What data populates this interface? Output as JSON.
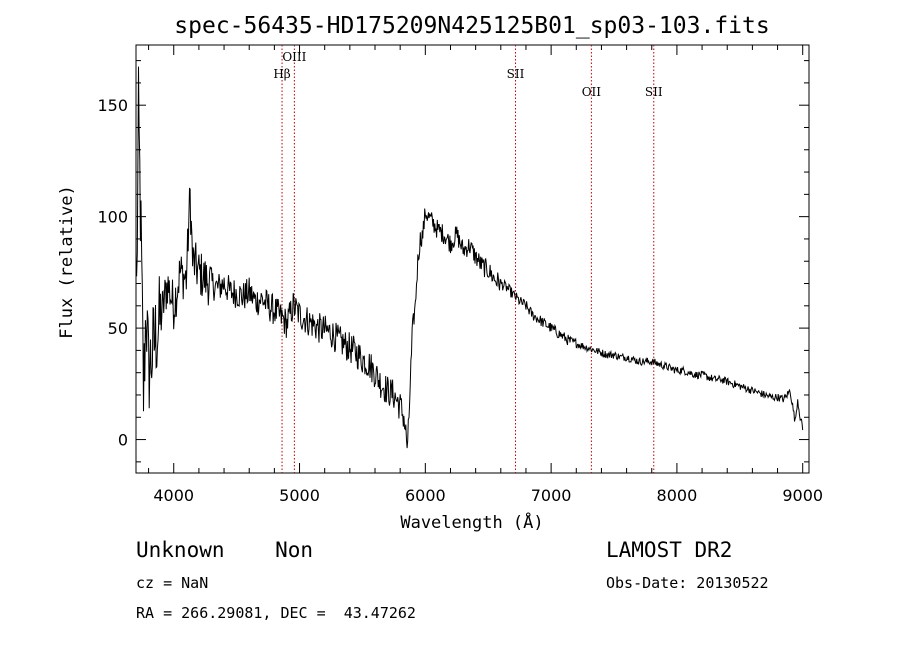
{
  "chart_data": {
    "type": "line",
    "title": "spec-56435-HD175209N425125B01_sp03-103.fits",
    "xlabel": "Wavelength (Å)",
    "ylabel": "Flux (relative)",
    "xlim": [
      3700,
      9050
    ],
    "ylim": [
      -15,
      177
    ],
    "x_ticks": [
      4000,
      5000,
      6000,
      7000,
      8000,
      9000
    ],
    "y_ticks": [
      0,
      50,
      100,
      150
    ],
    "grid": false,
    "series": [
      {
        "x": [
          3700,
          3720,
          3740,
          3760,
          3780,
          3800,
          3850,
          3900,
          3950,
          4000,
          4050,
          4100,
          4130,
          4150,
          4200,
          4250,
          4300,
          4350,
          4400,
          4450,
          4500,
          4550,
          4600,
          4650,
          4700,
          4750,
          4800,
          4850,
          4900,
          4950,
          5000,
          5050,
          5100,
          5150,
          5200,
          5250,
          5300,
          5350,
          5400,
          5450,
          5500,
          5550,
          5600,
          5650,
          5700,
          5750,
          5800,
          5830,
          5860,
          5880,
          5900,
          5920,
          5940,
          5960,
          5980,
          6000,
          6050,
          6100,
          6150,
          6200,
          6250,
          6300,
          6350,
          6400,
          6450,
          6500,
          6550,
          6600,
          6650,
          6700,
          6750,
          6800,
          6850,
          6900,
          6950,
          7000,
          7050,
          7100,
          7150,
          7200,
          7250,
          7300,
          7350,
          7400,
          7450,
          7500,
          7550,
          7600,
          7650,
          7700,
          7750,
          7800,
          7850,
          7900,
          7950,
          8000,
          8050,
          8100,
          8150,
          8200,
          8250,
          8300,
          8350,
          8400,
          8450,
          8500,
          8550,
          8600,
          8650,
          8700,
          8750,
          8800,
          8850,
          8900,
          8920,
          8940,
          8960,
          8980,
          9000
        ],
        "y": [
          40,
          145,
          90,
          20,
          60,
          30,
          45,
          55,
          70,
          60,
          75,
          72,
          110,
          80,
          75,
          72,
          70,
          68,
          70,
          66,
          66,
          64,
          66,
          62,
          63,
          60,
          58,
          55,
          52,
          60,
          56,
          54,
          52,
          50,
          49,
          48,
          45,
          43,
          41,
          39,
          36,
          34,
          30,
          25,
          22,
          20,
          15,
          10,
          -5,
          25,
          50,
          60,
          80,
          90,
          92,
          102,
          98,
          94,
          92,
          88,
          92,
          85,
          87,
          82,
          78,
          76,
          72,
          70,
          68,
          65,
          62,
          60,
          56,
          54,
          52,
          50,
          48,
          46,
          44,
          43,
          42,
          41,
          40,
          39,
          38,
          38,
          37,
          37,
          36,
          35,
          35,
          35,
          34,
          33,
          32,
          31,
          31,
          30,
          29,
          29,
          28,
          27,
          27,
          26,
          25,
          24,
          23,
          22,
          21,
          20,
          19,
          19,
          18,
          22,
          15,
          8,
          18,
          10,
          5
        ]
      }
    ],
    "line_ids": [
      {
        "label": "Hβ",
        "wavelength": 4861,
        "level": "low"
      },
      {
        "label": "OIII",
        "wavelength": 4959,
        "level": "high"
      },
      {
        "label": "SII",
        "wavelength": 6717,
        "level": "high"
      },
      {
        "label": "OII",
        "wavelength": 7320,
        "level": "low"
      },
      {
        "label": "SII",
        "wavelength": 7816,
        "level": "low"
      }
    ]
  },
  "info": {
    "class_label": "Unknown    Non",
    "survey_label": "LAMOST DR2",
    "cz_text": "cz = NaN",
    "obs_date_text": "Obs-Date: 20130522",
    "radec_text": "RA = 266.29081, DEC =  43.47262"
  }
}
